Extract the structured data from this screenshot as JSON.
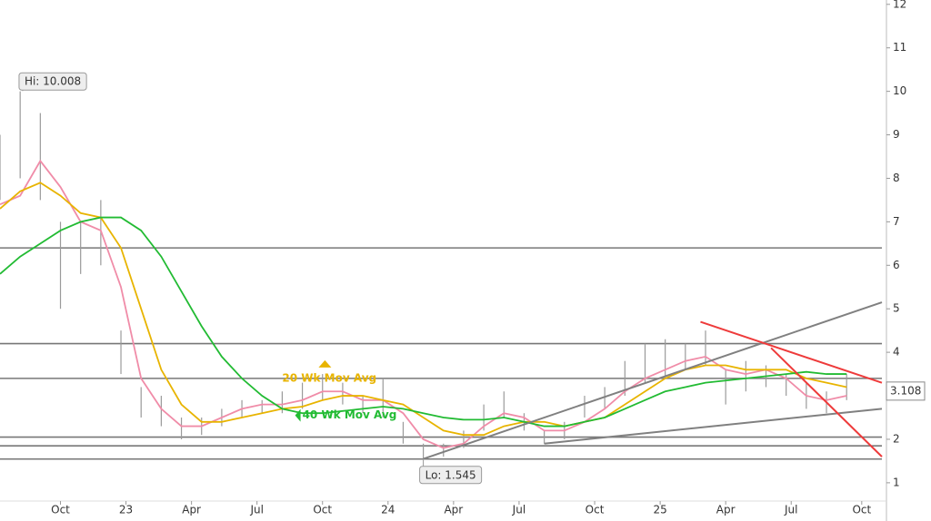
{
  "chart_data": {
    "type": "ohlc",
    "x": [
      -12,
      -8,
      -4,
      0,
      4,
      8,
      12,
      16,
      20,
      24,
      28,
      32,
      36,
      40,
      44,
      48,
      52,
      56,
      60,
      64,
      68,
      72,
      76,
      80,
      84,
      88,
      92,
      96,
      100,
      104,
      108,
      112,
      116,
      120,
      124,
      128,
      132,
      136,
      140,
      144,
      148,
      152,
      156
    ],
    "high": [
      9,
      10,
      9.5,
      7,
      7,
      7.5,
      4.5,
      3.2,
      3,
      2.5,
      2.5,
      2.7,
      2.9,
      2.9,
      3.1,
      3.3,
      3.5,
      3.3,
      3,
      3.4,
      2.4,
      1.9,
      1.9,
      2.2,
      2.8,
      3.1,
      2.6,
      2.2,
      2.4,
      3,
      3.2,
      3.8,
      4.2,
      4.3,
      4.2,
      4.5,
      3.6,
      3.8,
      3.7,
      3.5,
      3.3,
      3.1,
      3.5
    ],
    "low": [
      7.5,
      8,
      7.5,
      5,
      5.8,
      6,
      3.5,
      2.5,
      2.3,
      2,
      2.1,
      2.3,
      2.5,
      2.6,
      2.6,
      2.7,
      2.9,
      2.8,
      2.6,
      2.5,
      1.9,
      1.55,
      1.6,
      1.8,
      2.2,
      2.5,
      2.2,
      1.9,
      2,
      2.5,
      2.7,
      3,
      3.3,
      3.4,
      3.6,
      3.7,
      2.8,
      3.1,
      3.2,
      3,
      2.7,
      2.6,
      2.9
    ],
    "bar_color": "#9a9a9a",
    "series": [
      {
        "color": "#f08ca8",
        "values": [
          7.4,
          7.6,
          8.4,
          7.8,
          7,
          6.8,
          5.5,
          3.4,
          2.7,
          2.3,
          2.3,
          2.5,
          2.7,
          2.8,
          2.8,
          2.9,
          3.1,
          3.1,
          2.9,
          2.9,
          2.6,
          2,
          1.8,
          1.9,
          2.3,
          2.6,
          2.5,
          2.2,
          2.2,
          2.4,
          2.7,
          3.1,
          3.4,
          3.6,
          3.8,
          3.9,
          3.6,
          3.5,
          3.6,
          3.4,
          3,
          2.9,
          3
        ]
      },
      {
        "name": "20 Wk Mov Avg",
        "color": "#e8b400",
        "values": [
          7.3,
          7.7,
          7.9,
          7.6,
          7.2,
          7.1,
          6.4,
          5,
          3.6,
          2.8,
          2.4,
          2.4,
          2.5,
          2.6,
          2.7,
          2.75,
          2.9,
          3,
          3,
          2.9,
          2.8,
          2.5,
          2.2,
          2.1,
          2.1,
          2.3,
          2.4,
          2.4,
          2.3,
          2.4,
          2.5,
          2.8,
          3.1,
          3.4,
          3.6,
          3.7,
          3.7,
          3.6,
          3.6,
          3.6,
          3.4,
          3.3,
          3.2
        ]
      },
      {
        "name": "40 Wk Mov Avg",
        "color": "#22bb33",
        "values": [
          5.8,
          6.2,
          6.5,
          6.8,
          7,
          7.1,
          7.1,
          6.8,
          6.2,
          5.4,
          4.6,
          3.9,
          3.4,
          3,
          2.7,
          2.6,
          2.6,
          2.65,
          2.7,
          2.75,
          2.7,
          2.6,
          2.5,
          2.45,
          2.45,
          2.5,
          2.4,
          2.3,
          2.3,
          2.4,
          2.5,
          2.7,
          2.9,
          3.1,
          3.2,
          3.3,
          3.35,
          3.4,
          3.45,
          3.5,
          3.55,
          3.5,
          3.5
        ]
      }
    ],
    "label_positions": [
      {
        "x": 44,
        "y": 3.4
      },
      {
        "x": 48,
        "y": 2.55
      }
    ],
    "hlines": [
      6.4,
      4.2,
      3.4,
      2.05,
      1.85,
      1.545
    ],
    "hline_color": "#777777",
    "trendlines": [
      {
        "x": [
          72,
          163
        ],
        "y": [
          1.55,
          5.15
        ],
        "color": "#808080"
      },
      {
        "x": [
          96,
          163
        ],
        "y": [
          1.9,
          2.7
        ],
        "color": "#808080"
      },
      {
        "x": [
          127,
          163
        ],
        "y": [
          4.7,
          3.3
        ],
        "color": "#ee3b3b"
      },
      {
        "x": [
          141,
          163
        ],
        "y": [
          4.1,
          1.6
        ],
        "color": "#ee3b3b"
      }
    ],
    "annotations": [
      {
        "text": "Hi: 10.008",
        "x": -7.5,
        "y": 10.008
      },
      {
        "text": "Lo: 1.545",
        "x": 72,
        "y": 1.545
      }
    ],
    "last_price": 3.108,
    "xlim": [
      -12,
      163
    ],
    "ylim": [
      0.58,
      12.1
    ],
    "xticks": [
      {
        "value": 0,
        "label": "Oct"
      },
      {
        "value": 13,
        "label": "23"
      },
      {
        "value": 26,
        "label": "Apr"
      },
      {
        "value": 39,
        "label": "Jul"
      },
      {
        "value": 52,
        "label": "Oct"
      },
      {
        "value": 65,
        "label": "24"
      },
      {
        "value": 78,
        "label": "Apr"
      },
      {
        "value": 91,
        "label": "Jul"
      },
      {
        "value": 106,
        "label": "Oct"
      },
      {
        "value": 119,
        "label": "25"
      },
      {
        "value": 132,
        "label": "Apr"
      },
      {
        "value": 145,
        "label": "Jul"
      },
      {
        "value": 159,
        "label": "Oct"
      }
    ],
    "yticks": [
      1,
      2,
      3,
      4,
      5,
      6,
      7,
      8,
      9,
      10,
      11,
      12
    ]
  }
}
